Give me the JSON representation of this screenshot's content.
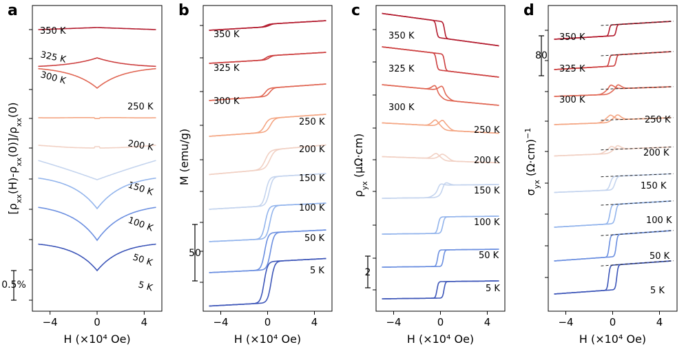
{
  "chart_data": [
    {
      "type": "line",
      "panel_label": "a",
      "xlabel": "H (×10⁴ Oe)",
      "ylabel": "[ρxx(H)-ρxx(0)]/ρxx(0)",
      "xlim": [
        -5.5,
        5.5
      ],
      "xticks": [
        -4,
        0,
        4
      ],
      "scale_bar": "0.5%",
      "series": [
        {
          "name": "350 K",
          "color": "#b2182b",
          "offset": 40,
          "shape": "mr",
          "a": 0.3,
          "b": -2.0,
          "w": 0
        },
        {
          "name": "325 K",
          "color": "#cc3d3d",
          "offset": 84,
          "shape": "mr",
          "a": -8,
          "b": 0,
          "w": 0
        },
        {
          "name": "300 K",
          "color": "#e06552",
          "offset": 128,
          "shape": "mr",
          "a": -35,
          "b": 4.3,
          "w": 0
        },
        {
          "name": "250 K",
          "color": "#f4a582",
          "offset": 171,
          "shape": "mr",
          "a": 0,
          "b": 0,
          "w": 1
        },
        {
          "name": "200 K",
          "color": "#f1d0c3",
          "offset": 215,
          "shape": "mr",
          "a": 7,
          "b": 0,
          "w": 1.5
        },
        {
          "name": "150 K",
          "color": "#c4d4ee",
          "offset": 261,
          "shape": "mr",
          "a": 31,
          "b": 0,
          "w": 0
        },
        {
          "name": "100 K",
          "color": "#92b4ec",
          "offset": 303,
          "shape": "mr",
          "a": 51,
          "b": -0.5,
          "w": 0
        },
        {
          "name": "50 K",
          "color": "#6a8ee0",
          "offset": 349,
          "shape": "mr",
          "a": 59,
          "b": -1.2,
          "w": 0
        },
        {
          "name": "5 K",
          "color": "#3c55b8",
          "offset": 393,
          "shape": "mr",
          "a": 45,
          "b": -0.4,
          "w": 0
        }
      ]
    },
    {
      "type": "line",
      "panel_label": "b",
      "xlabel": "H (×10⁴ Oe)",
      "ylabel": "M (emu/g)",
      "xlim": [
        -5.5,
        5.5
      ],
      "xticks": [
        -4,
        0,
        4
      ],
      "scale_bar": "50",
      "series": [
        {
          "name": "350 K",
          "color": "#b2182b",
          "offset": 37,
          "shape": "m",
          "amp": 2,
          "slope": 1.0,
          "hys": 0.15,
          "wid": 0.3
        },
        {
          "name": "325 K",
          "color": "#cc3d3d",
          "offset": 84,
          "shape": "m",
          "amp": 3,
          "slope": 1.0,
          "hys": 0.15,
          "wid": 0.3
        },
        {
          "name": "300 K",
          "color": "#e06552",
          "offset": 134,
          "shape": "m",
          "amp": 6,
          "slope": 1.2,
          "hys": 0.2,
          "wid": 0.3
        },
        {
          "name": "250 K",
          "color": "#f4a582",
          "offset": 182,
          "shape": "m",
          "amp": 10,
          "slope": 1.2,
          "hys": 0.25,
          "wid": 0.35
        },
        {
          "name": "200 K",
          "color": "#f1d0c3",
          "offset": 232,
          "shape": "m",
          "amp": 14,
          "slope": 1.5,
          "hys": 0.2,
          "wid": 0.4
        },
        {
          "name": "150 K",
          "color": "#c4d4ee",
          "offset": 278,
          "shape": "m",
          "amp": 21,
          "slope": 1.0,
          "hys": 0.15,
          "wid": 0.3
        },
        {
          "name": "100 K",
          "color": "#92b4ec",
          "offset": 323,
          "shape": "m",
          "amp": 24,
          "slope": 0.8,
          "hys": 0.2,
          "wid": 0.3
        },
        {
          "name": "50 K",
          "color": "#6a8ee0",
          "offset": 365,
          "shape": "m",
          "amp": 27,
          "slope": 0.8,
          "hys": 0.25,
          "wid": 0.3
        },
        {
          "name": "5 K",
          "color": "#3c55b8",
          "offset": 410,
          "shape": "m",
          "amp": 30,
          "slope": 0.9,
          "hys": 0.3,
          "wid": 0.3
        }
      ]
    },
    {
      "type": "line",
      "panel_label": "c",
      "xlabel": "H (×10⁴ Oe)",
      "ylabel": "ρyx (μΩ·cm)",
      "xlim": [
        -5.5,
        5.5
      ],
      "xticks": [
        -4,
        0,
        4
      ],
      "scale_bar": "2",
      "series": [
        {
          "name": "350 K",
          "color": "#b2182b",
          "offset": 43,
          "shape": "ahe",
          "amp": -12,
          "slope": -2.3,
          "hys": 0.35,
          "wid": 0.12,
          "spike": 0
        },
        {
          "name": "325 K",
          "color": "#cc3d3d",
          "offset": 90,
          "shape": "ahe",
          "amp": -12,
          "slope": -2.0,
          "hys": 0.35,
          "wid": 0.12,
          "spike": 0
        },
        {
          "name": "300 K",
          "color": "#e06552",
          "offset": 138,
          "shape": "ahe",
          "amp": -7,
          "slope": -1.6,
          "hys": 0.3,
          "wid": 0.15,
          "spike": -8
        },
        {
          "name": "250 K",
          "color": "#f4a582",
          "offset": 186,
          "shape": "ahe",
          "amp": -3,
          "slope": -0.9,
          "hys": 0.3,
          "wid": 0.15,
          "spike": -10
        },
        {
          "name": "200 K",
          "color": "#f1d0c3",
          "offset": 232,
          "shape": "ahe",
          "amp": -1.5,
          "slope": -0.6,
          "hys": 0.25,
          "wid": 0.15,
          "spike": -8
        },
        {
          "name": "150 K",
          "color": "#c4d4ee",
          "offset": 278,
          "shape": "ahe",
          "amp": 9,
          "slope": 0.2,
          "hys": 0.2,
          "wid": 0.2,
          "spike": -5
        },
        {
          "name": "100 K",
          "color": "#92b4ec",
          "offset": 327,
          "shape": "ahe",
          "amp": 12,
          "slope": 0.2,
          "hys": 0.2,
          "wid": 0.15,
          "spike": 0
        },
        {
          "name": "50 K",
          "color": "#6a8ee0",
          "offset": 375,
          "shape": "ahe",
          "amp": 12,
          "slope": 0.2,
          "hys": 0.25,
          "wid": 0.12,
          "spike": 0
        },
        {
          "name": "5 K",
          "color": "#3c55b8",
          "offset": 421,
          "shape": "ahe",
          "amp": 12,
          "slope": 0.2,
          "hys": 0.3,
          "wid": 0.12,
          "spike": 0
        }
      ]
    },
    {
      "type": "line",
      "panel_label": "d",
      "xlabel": "H (×10⁴ Oe)",
      "ylabel": "σyx (Ω·cm)⁻¹",
      "xlim": [
        -5.5,
        5.5
      ],
      "xticks": [
        -4,
        0,
        4
      ],
      "scale_bar": "80",
      "series": [
        {
          "name": "350 K",
          "color": "#b2182b",
          "offset": 44,
          "shape": "ahe",
          "amp": 8,
          "slope": 1.0,
          "hys": 0.3,
          "wid": 0.1,
          "spike": 0,
          "fit": true
        },
        {
          "name": "325 K",
          "color": "#cc3d3d",
          "offset": 88,
          "shape": "ahe",
          "amp": 8,
          "slope": 1.0,
          "hys": 0.3,
          "wid": 0.1,
          "spike": 0,
          "fit": true
        },
        {
          "name": "300 K",
          "color": "#e06552",
          "offset": 133,
          "shape": "ahe",
          "amp": 4,
          "slope": 0.6,
          "hys": 0.3,
          "wid": 0.15,
          "spike": -7,
          "fit": true
        },
        {
          "name": "250 K",
          "color": "#f4a582",
          "offset": 176,
          "shape": "ahe",
          "amp": 2,
          "slope": 0.6,
          "hys": 0.3,
          "wid": 0.15,
          "spike": -8,
          "fit": true
        },
        {
          "name": "200 K",
          "color": "#f1d0c3",
          "offset": 220,
          "shape": "ahe",
          "amp": 3,
          "slope": 0.7,
          "hys": 0.25,
          "wid": 0.15,
          "spike": -6,
          "fit": true
        },
        {
          "name": "150 K",
          "color": "#c4d4ee",
          "offset": 266,
          "shape": "ahe",
          "amp": 10,
          "slope": 0.7,
          "hys": 0.2,
          "wid": 0.2,
          "spike": 0,
          "fit": true
        },
        {
          "name": "100 K",
          "color": "#92b4ec",
          "offset": 311,
          "shape": "ahe",
          "amp": 14,
          "slope": 1.0,
          "hys": 0.25,
          "wid": 0.15,
          "spike": 0,
          "fit": true
        },
        {
          "name": "50 K",
          "color": "#6a8ee0",
          "offset": 357,
          "shape": "ahe",
          "amp": 16,
          "slope": 1.2,
          "hys": 0.3,
          "wid": 0.12,
          "spike": 0,
          "fit": true
        },
        {
          "name": "5 K",
          "color": "#3c55b8",
          "offset": 403,
          "shape": "ahe",
          "amp": 18,
          "slope": 1.2,
          "hys": 0.35,
          "wid": 0.12,
          "spike": 0,
          "fit": true
        }
      ]
    }
  ]
}
